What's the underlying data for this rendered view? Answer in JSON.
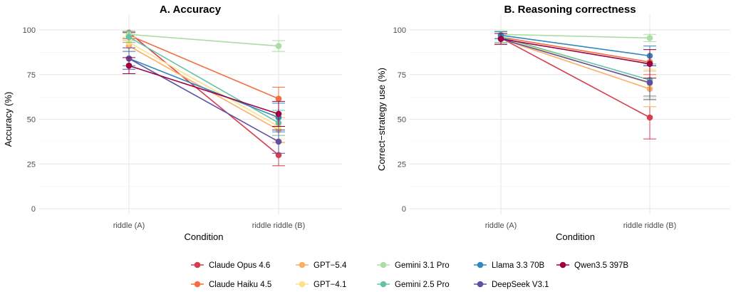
{
  "chart_data": [
    {
      "type": "line",
      "title": "A. Accuracy",
      "xlabel": "Condition",
      "ylabel": "Accuracy (%)",
      "categories": [
        "riddle (A)",
        "riddle riddle (B)"
      ],
      "ylim": [
        0,
        100
      ],
      "yticks": [
        "0",
        "25",
        "50",
        "75",
        "100"
      ],
      "grid": true,
      "series": [
        {
          "name": "Claude Opus 4.6",
          "values": [
            98.5,
            30
          ],
          "err": [
            [
              98.5,
              98.5
            ],
            [
              24,
              37
            ]
          ]
        },
        {
          "name": "Claude Haiku 4.5",
          "values": [
            97,
            61.5
          ],
          "err": [
            [
              95,
              99
            ],
            [
              55,
              68
            ]
          ]
        },
        {
          "name": "GPT−5.4",
          "values": [
            91,
            44
          ],
          "err": [
            [
              88,
              94
            ],
            [
              37,
              51
            ]
          ]
        },
        {
          "name": "GPT−4.1",
          "values": [
            93,
            46
          ],
          "err": [
            [
              90,
              96
            ],
            [
              39,
              53
            ]
          ]
        },
        {
          "name": "Gemini 3.1 Pro",
          "values": [
            97.5,
            91
          ],
          "err": [
            [
              95.5,
              99.5
            ],
            [
              88,
              94
            ]
          ]
        },
        {
          "name": "Gemini 2.5 Pro",
          "values": [
            96,
            48
          ],
          "err": [
            [
              93,
              99
            ],
            [
              41,
              55
            ]
          ]
        },
        {
          "name": "Llama 3.3 70B",
          "values": [
            84,
            51
          ],
          "err": [
            [
              80,
              88
            ],
            [
              43,
              59
            ]
          ]
        },
        {
          "name": "DeepSeek V3.1",
          "values": [
            84,
            37.5
          ],
          "err": [
            [
              78,
              90
            ],
            [
              31,
              44
            ]
          ]
        },
        {
          "name": "Qwen3.5 397B",
          "values": [
            80,
            53
          ],
          "err": [
            [
              75.5,
              84.5
            ],
            [
              46,
              60
            ]
          ]
        }
      ]
    },
    {
      "type": "line",
      "title": "B. Reasoning correctness",
      "xlabel": "Condition",
      "ylabel": "Correct−strategy use (%)",
      "categories": [
        "riddle (A)",
        "riddle riddle (B)"
      ],
      "ylim": [
        0,
        100
      ],
      "yticks": [
        "0",
        "25",
        "50",
        "75",
        "100"
      ],
      "grid": true,
      "series": [
        {
          "name": "Claude Opus 4.6",
          "values": [
            95.5,
            51
          ],
          "err": [
            [
              92,
              99
            ],
            [
              39,
              63
            ]
          ]
        },
        {
          "name": "Claude Haiku 4.5",
          "values": [
            96,
            82
          ],
          "err": [
            [
              93,
              99
            ],
            [
              75,
              89
            ]
          ]
        },
        {
          "name": "GPT−5.4",
          "values": [
            95,
            67
          ],
          "err": [
            [
              92,
              98
            ],
            [
              57,
              77
            ]
          ]
        },
        {
          "name": "GPT−4.1",
          "values": [
            96,
            70
          ],
          "err": [
            [
              93,
              99
            ],
            [
              62,
              78
            ]
          ]
        },
        {
          "name": "Gemini 3.1 Pro",
          "values": [
            97.5,
            95.5
          ],
          "err": [
            [
              95.5,
              99.5
            ],
            [
              93.5,
              97.5
            ]
          ]
        },
        {
          "name": "Gemini 2.5 Pro",
          "values": [
            96,
            72
          ],
          "err": [
            [
              93,
              99
            ],
            [
              63,
              81
            ]
          ]
        },
        {
          "name": "Llama 3.3 70B",
          "values": [
            97,
            85.5
          ],
          "err": [
            [
              95,
              99
            ],
            [
              80,
              91
            ]
          ]
        },
        {
          "name": "DeepSeek V3.1",
          "values": [
            95,
            70.5
          ],
          "err": [
            [
              92,
              98
            ],
            [
              61,
              80
            ]
          ]
        },
        {
          "name": "Qwen3.5 397B",
          "values": [
            95,
            81
          ],
          "err": [
            [
              92,
              98
            ],
            [
              73,
              89
            ]
          ]
        }
      ]
    }
  ],
  "legend": {
    "placement": "bottom",
    "items": [
      {
        "name": "Claude Opus 4.6",
        "color": "#d53e4f"
      },
      {
        "name": "GPT−5.4",
        "color": "#fdae61"
      },
      {
        "name": "Gemini 3.1 Pro",
        "color": "#abdda4"
      },
      {
        "name": "Llama 3.3 70B",
        "color": "#3288bd"
      },
      {
        "name": "Qwen3.5 397B",
        "color": "#9e0142"
      },
      {
        "name": "Claude Haiku 4.5",
        "color": "#f46d43"
      },
      {
        "name": "GPT−4.1",
        "color": "#fee08b"
      },
      {
        "name": "Gemini 2.5 Pro",
        "color": "#66c2a5"
      },
      {
        "name": "DeepSeek V3.1",
        "color": "#5e4fa2"
      }
    ]
  },
  "colors": {
    "Claude Opus 4.6": "#d53e4f",
    "Claude Haiku 4.5": "#f46d43",
    "GPT−5.4": "#fdae61",
    "GPT−4.1": "#fee08b",
    "Gemini 3.1 Pro": "#abdda4",
    "Gemini 2.5 Pro": "#66c2a5",
    "Llama 3.3 70B": "#3288bd",
    "DeepSeek V3.1": "#5e4fa2",
    "Qwen3.5 397B": "#9e0142"
  }
}
